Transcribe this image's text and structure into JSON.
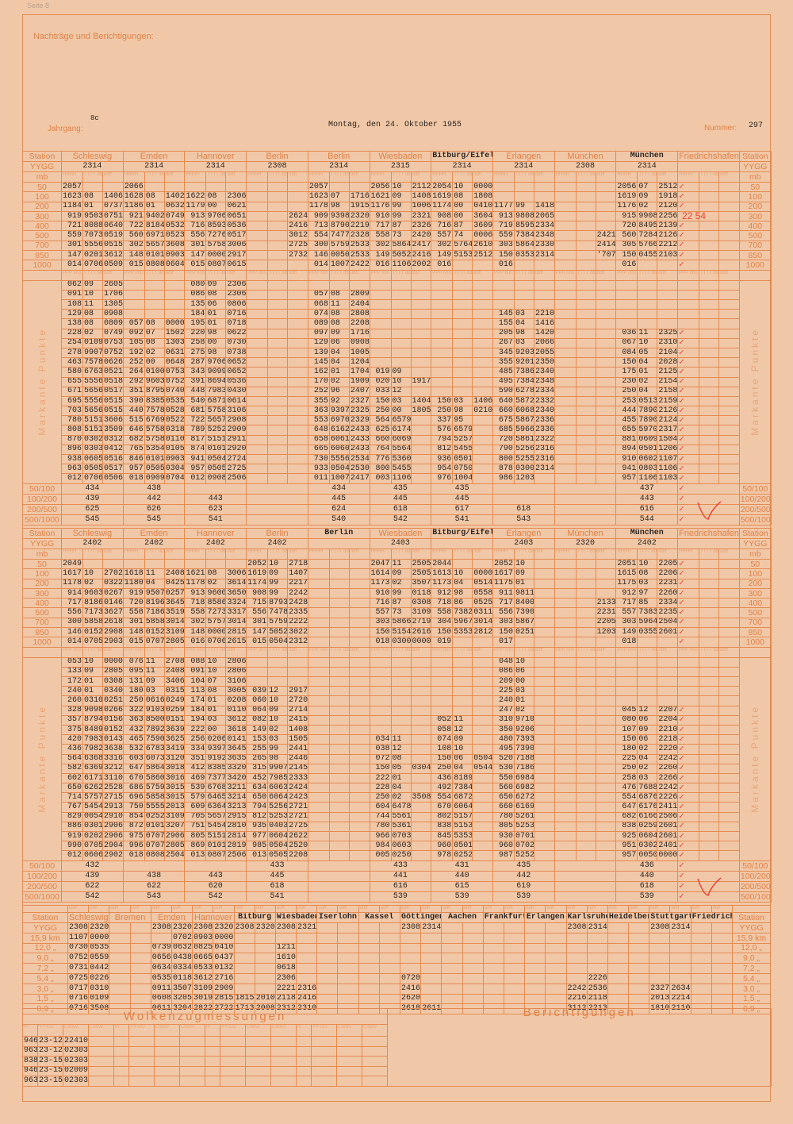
{
  "page_label": "Seite 8",
  "notes_title": "Nachträge und Berichtigungen:",
  "header": {
    "jahrgang_label": "Jahrgang:",
    "jahrgang": "8c",
    "date": "Montag, den 24. Oktober 1955",
    "nummer_label": "Nummer:",
    "nummer": "297"
  },
  "labels": {
    "station": "Station",
    "yygg": "YYGG",
    "mb": "mb",
    "markante": "Markante Punkte",
    "check": "✓"
  },
  "colors": {
    "paper": "#f1c8a7",
    "lines": "#e38a52",
    "print": "#e0824a",
    "correction": "#e8463a"
  },
  "sub_main": [
    "HHHH",
    "TTTT dd",
    "ddff"
  ],
  "sub_mark": [
    "PPP nnn",
    "TTTT dd",
    "ddff"
  ],
  "levels": [
    "50",
    "100",
    "200",
    "300",
    "400",
    "500",
    "700",
    "850",
    "1000"
  ],
  "summary_labels": [
    "50/100",
    "100/200",
    "200/500",
    "500/1000"
  ],
  "block1": {
    "stations": [
      "Schleswig",
      "Emden",
      "Hannover",
      "Berlin",
      "Berlin",
      "Wiesbaden",
      "Bitburg/Eifel",
      "Erlangen",
      "München",
      "München",
      "Friedrichshafen"
    ],
    "typed": [
      false,
      false,
      false,
      false,
      false,
      false,
      true,
      false,
      false,
      true,
      false
    ],
    "yygg": [
      "2314",
      "2314",
      "2314",
      "2308",
      "2314",
      "2315",
      "2314",
      "2314",
      "2308",
      "2314",
      ""
    ],
    "correction": "22 54",
    "rows": [
      "2057,,|2066,,|,,|,,|2057,,|2056,10,2112|2054,10,0000|,,|,,|2056,07,2512|✓,,",
      "1623,08,1406|1628,08,1402|1622,08,2306|,,|1623,07,1716|1621,09,1408|1619,08,1808|,,|,,|1619,09,1918|✓,,",
      "1184,01,0737|1186,01,0632|1179,00,0621|,,|1178,98,1915|1176,99,1006|1174,00,0410|1177,99,1418|,,|1176,02,2120|✓,,",
      "919,9503,0751|921,9402,0749|913,9706,0651|,,2624|909,9398,2320|910,99,2321|908,00,3604|913,9808,2065|,,|915,9908,2256|,,",
      "721,8088,0640|722,8184,0532|716,8593,0536|,,2416|713,8790,2219|717,87,2326|716,87,3609|719,8595,2334|,,|720,8495,2139|✓,,",
      "559,7073,0519|560,6971,0523|556,7276,0517|,,3012|554,7477,2328|558,73,2420|557,74,0006|559,7384,2348|,,2421|560,7284,2126|✓,,",
      "301,5556,0515|302,5657,3608|301,5758,3006|,,2725|300,5759,2533|302,5864,2417|302,5764,2610|303,5864,2330|,,2414|305,5766,2212|✓,,",
      "147,0201,3612|148,0101,0903|147,0000,2917|,,2732|146,0050,2533|149,5052,2416|149,5153,2512|150,0353,2314|,,'707|150,0455,2103|✓,,",
      "014,0706,0509|015,0808,0604|015,0807,0615|,,|014,1007,2422|016,1106,2002|016,,|016,,|,,|016,,|✓,,"
    ],
    "markante_rows": [
      "062,09,2605|,,|080,09,2306|,,|,,|,,|,,|,,|,,|,,|,,",
      "091,10,1706|,,|086,08,2306|,,|057,08,2809|,,|,,|,,|,,|,,|,,",
      "108,11,1305|,,|135,06,0806|,,|068,11,2404|,,|,,|,,|,,|,,|,,",
      "129,08,0908|,,|184,01,0716|,,|074,08,2808|,,|,,|145,03,2210|,,|,,|,,",
      "138,08,0809|057,08,0000|195,01,0718|,,|089,08,2208|,,|,,|155,04,1416|,,|,,|,,",
      "228,02,0749|092,07,1502|220,98,0622|,,|097,09,1716|,,|,,|205,98,1420|,,|036,11,2325|✓,,",
      "254,0109,0753|105,08,1303|258,00,0730|,,|129,06,0908|,,|,,|267,03,2066|,,|067,10,2310|✓,,",
      "278,9907,0752|192,02,0631|275,98,0738|,,|139,04,1005|,,|,,|345,9203,2055|,,|084,05,2104|✓,,",
      "463,7578,0626|252,00,0648|287,9706,0652|,,|145,04,1204|,,|,,|355,9201,2350|,,|150,04,2028|✓,,",
      "580,6763,0521|264,0100,0753|343,9099,0652|,,|162,01,1704|019,09,|,,|485,7386,2340|,,|175,01,2125|✓,,",
      "655,5556,0518|292,9603,0752|391,8694,0536|,,|170,02,1909|020,10,1917|,,|495,7384,2348|,,|230,02,2154|✓,,",
      "671,5656,0517|351,8795,0740|448,7983,0430|,,|252,96,2407|033,12,|,,|590,6278,2334|,,|250,04,2158|✓,,",
      "695,5556,0515|390,8385,0535|540,6871,0614|,,|355,92,2327|150,03,1404|150,03,1406|640,5872,2332|,,|253,0513,2159|✓,,",
      "703,5656,0515|440,7578,0528|681,5758,3106|,,|363,9397,2325|250,00,1805|250,98,0210|660,6068,2340|,,|444,7890,2126|✓,,",
      "780,5151,3606|515,6769,0522|722,5657,2908|,,|553,6970,2329|564,6579,|337,95,|675,5867,2336|,,|455,7890,2124|✓,,",
      "808,5151,3509|646,5758,0318|789,5252,2909|,,|648,6162,2433|625,6174,|576,6579,|685,5966,2336|,,|655,5970,2317|✓,,",
      "870,0302,0312|682,5758,0110|817,5151,2911|,,|658,6061,2433|660,6069,|794,5257,|720,5861,2322|,,|881,0609,1504|✓,,",
      "896,0303,0412|765,5354,0105|874,0101,2920|,,|665,6060,2433|764,5564,|812,5455,|790,5256,2316|,,|894,0501,1206|✓,,",
      "938,0605,0516|846,0101,0903|941,0504,2724|,,|730,5556,2534|776,5360,|936,0501,|800,5255,2316|,,|910,0602,1107|✓,,",
      "963,0505,0517|957,0505,0304|957,0505,2725|,,|933,0504,2530|800,5455,|954,0750,|878,0300,2314|,,|941,0803,1106|✓,,",
      "012,0706,0506|018,0909,0704|012,0908,2506|,,|011,1007,2417|003,1106,|976,1004,|986,1203,|,,|957,1106,1103|✓,,"
    ],
    "summaries": [
      [
        "434",
        "438",
        "",
        "",
        "434",
        "435",
        "435",
        "",
        "",
        "437",
        "✓"
      ],
      [
        "439",
        "442",
        "443",
        "",
        "445",
        "445",
        "445",
        "",
        "",
        "443",
        "✓"
      ],
      [
        "625",
        "626",
        "623",
        "",
        "624",
        "618",
        "617",
        "618",
        "",
        "616",
        "✓"
      ],
      [
        "545",
        "545",
        "541",
        "",
        "540",
        "542",
        "541",
        "543",
        "",
        "544",
        "✓"
      ]
    ]
  },
  "block2": {
    "stations": [
      "Schleswig",
      "Emden",
      "Hannover",
      "Berlin",
      "Berlin",
      "Wiesbaden",
      "Bitburg/Eifel",
      "Erlangen",
      "München",
      "München",
      "Friedrichshafen"
    ],
    "typed": [
      false,
      false,
      false,
      false,
      true,
      false,
      true,
      false,
      false,
      true,
      false
    ],
    "yygg": [
      "2402",
      "2402",
      "2402",
      "2402",
      "",
      "2403",
      "",
      "2403",
      "2320",
      "2402",
      ""
    ],
    "rows": [
      "2049,,|,,|,,|2052,10,2718|,,|2047,11,2505|2044,,|2052,10,|,,|2051,10,2205|✓,,",
      "1617,10,2702|1618,11,2408|1621,08,3006|1619,09,1407|,,|1614,09,2505|1613,10,0000|1617,09,|,,|1615,08,2206|✓,,",
      "1178,02,0322|1180,04,0425|1178,02,3614|1174,99,2217|,,|1173,02,3507|1173,04,0514|1175,01,|,,|1175,03,2231|✓,,",
      "914,9603,0267|919,9507,0257|913,9600,3650|908,99,2242|,,|910,99,0118|912,98,0558|911,9811,|,,|912,97,2260|✓,,",
      "717,8186,0146|720,8196,3645|718,8586,3324|715,8793,2428|,,|716,87,0308|718,86,0525|717,8400,|,,2133|717,85,2334|✓,,",
      "556,7173,3627|558,7186,3519|558,7273,3317|556,7478,2335|,,|557,73,3109|558,7382,0311|556,7390,|,,2231|557,7383,2235|✓,,",
      "300,5858,2618|301,5858,3014|302,5757,3014|301,5759,2222|,,|303,5866,2719|304,5967,3014|303,5867,|,,2205|303,5964,2504|✓,,",
      "146,0152,2908|148,0152,3109|148,0000,2815|147,5052,3022|,,|150,5154,2616|150,5353,2812|150,0251,|,,1203|149,0355,2601|✓,,",
      "014,0705,2903|015,0707,2805|016,0706,2615|015,0504,2312|,,|018,0300,0000|019,,|017,,|,,|018,,|✓,,"
    ],
    "markante_rows": [
      "053,10,0000|076,11,2708|088,10,2806|,,|,,|,,|,,|048,10,|,,|,,|,,",
      "133,09,2805|095,11,2408|091,10,2806|,,|,,|,,|,,|086,06,|,,|,,|,,",
      "172,01,0308|131,09,3406|104,07,3106|,,|,,|,,|,,|209,00,|,,|,,|,,",
      "240,01,0340|180,03,0315|113,08,3005|039,12,2917|,,|,,|,,|225,03,|,,|,,|,,",
      "260,0310,0251|250,0616,0249|174,01,0208|060,10,2720|,,|,,|,,|240,01,|,,|,,|,,",
      "328,9098,0266|322,9103,0259|184,01,0110|064,09,2714|,,|,,|,,|247,02,|,,|045,12,2207|✓,,",
      "357,8794,0156|363,8500,0151|194,03,3612|082,10,2415|,,|,,|052,11,|310,9710,|,,|080,06,2204|✓,,",
      "375,8489,0152|432,7892,3639|222,00,3618|149,02,1408|,,|,,|058,12,|350,9206,|,,|107,09,2210|✓,,",
      "420,7983,0143|465,7590,3625|256,0206,0141|153,03,1505|,,|034,11,|074,09,|480,7393,|,,|150,06,2218|✓,,",
      "436,7982,3638|532,6783,3419|334,9397,3645|255,99,2441|,,|038,12,|108,10,|495,7390,|,,|180,02,2220|✓,,",
      "564,6368,3316|603,6073,3120|351,9192,3635|265,98,2446|,,|072,08,|150,06,0504|520,7188,|,,|225,04,2242|✓,,",
      "582,6369,3212|647,5864,3018|412,8385,3320|315,9907,2145|,,|150,05,0304|250,04,0544|530,7186,|,,|250,02,2260|✓,,",
      "602,6171,3110|670,5860,3016|469,7377,3420|452,7985,2333|,,|222,01,|436,8189,|550,6984,|,,|258,03,2266|✓,,",
      "650,6262,2528|686,5759,3015|539,6768,3211|634,6063,2424|,,|228,04,|492,7384,|560,6982,|,,|476,7688,2242|✓,,",
      "714,5757,2715|696,5858,3015|579,6465,3214|650,6064,2423|,,|250,02,3508|554,6872,|650,6272,|,,|554,6876,2226|✓,,",
      "767,5454,2913|750,5555,2013|609,6364,3213|794,5256,2721|,,|604,6478,|670,6064,|660,6169,|,,|647,6176,2411|✓,,",
      "829,0054,2910|854,0252,3109|705,5657,2915|812,5253,2721|,,|744,5561,|802,5157,|780,5261,|,,|682,6166,2506|✓,,",
      "886,0301,2906|872,0101,3207|751,5454,2810|935,0403,2725|,,|780,5361,|838,5153,|805,5253,|,,|838,0259,2601|✓,,",
      "919,0202,2906|975,0707,2906|805,5151,2814|977,0604,2622|,,|966,0703,|845,5353,|930,0701,|,,|925,0604,2601|✓,,",
      "990,0705,2904|996,0707,2805|869,0101,2819|985,0504,2520|,,|984,0603,|960,0501,|960,0702,|,,|951,0302,2401|✓,,",
      "012,0606,2902|018,0808,2504|013,0807,2506|013,0505,2208|,,|005,0250,|978,0252,|987,5252,|,,|957,0050,0000|✓,,"
    ],
    "summaries": [
      [
        "432",
        "",
        "",
        "433",
        "",
        "433",
        "431",
        "435",
        "",
        "436",
        "✓"
      ],
      [
        "439",
        "438",
        "443",
        "445",
        "",
        "441",
        "440",
        "442",
        "",
        "440",
        "✓"
      ],
      [
        "622",
        "622",
        "620",
        "618",
        "",
        "616",
        "615",
        "619",
        "",
        "618",
        "✓"
      ],
      [
        "542",
        "543",
        "542",
        "541",
        "",
        "539",
        "539",
        "539",
        "",
        "539",
        "✓"
      ]
    ]
  },
  "wind": {
    "sub": "ddff",
    "stations": [
      "Schleswig",
      "Bremen",
      "Emden",
      "Hannover",
      "Bitburg",
      "Wiesbaden",
      "Iserlohn",
      "Kassel",
      "Göttingen",
      "Aachen",
      "Frankfurt",
      "Erlangen",
      "Karlsruhe",
      "Heidelberg",
      "Stuttgart",
      "Friedrichsh."
    ],
    "typed": [
      false,
      false,
      false,
      false,
      true,
      true,
      true,
      true,
      true,
      true,
      true,
      true,
      true,
      true,
      true,
      true
    ],
    "row_labels": [
      "YYGG",
      "15,9 km",
      "12,0 „",
      "9,0 „",
      "7,2 „",
      "5,4 „",
      "3,0 „",
      "1,5 „",
      "0,9 „"
    ],
    "rows": [
      "2308,2320|,|2308,2320|2308,2320|2308,2320|2308,2321|,|,|2308,2314|,|,|,|2308,2314|,|2308,2314|,",
      "1107,0000|,|,0702|0903,0000|,|,|,|,|,|,|,|,|,|,|,|,",
      "0730,0535|,|0739,0632|0825,0410|,|1211,|,|,|,|,|,|,|,|,|,|,",
      "0752,0559|,|0656,0438|0665,0437|,|1610,|,|,|,|,|,|,|,|,|,|,",
      "0731,0442|,|0634,0334|0533,0132|,|0618,|,|,|,|,|,|,|,|,|,|,",
      "0725,0226|,|0535,0118|3612,2716|,|2306,|,|,|0720,|,|,|,|,2226|,|,|,",
      "0717,0310|,|0911,3507|3109,2909|,|2221,2316|,|,|2416,|,|,|,|2242,2536|,|2327,2634|,",
      "0716,0109|,|0608,3205|3019,2815|1815,2010|2118,2416|,|,|2620,|,|,|,|2216,2118|,|2013,2214|,",
      "0716,3508|,|0611,3204|2822,2722|1713,2008|2312,2310|,|,|2618,2611|,|,|,|3112,2213|,|1810,2110|,"
    ]
  },
  "clouds": {
    "title": "Wolkenzugmessungen",
    "corrections_title": "Berichtigungen",
    "columns": [
      "III",
      "YY-GG",
      "Cddvv",
      "Cddvv"
    ],
    "rows": [
      [
        "946",
        "23-12",
        "22410"
      ],
      [
        "963",
        "23-12",
        "02303"
      ],
      [
        "838",
        "23-15",
        "02303"
      ],
      [
        "946",
        "23-15",
        "02009"
      ],
      [
        "963",
        "23-15",
        "02303"
      ]
    ]
  }
}
